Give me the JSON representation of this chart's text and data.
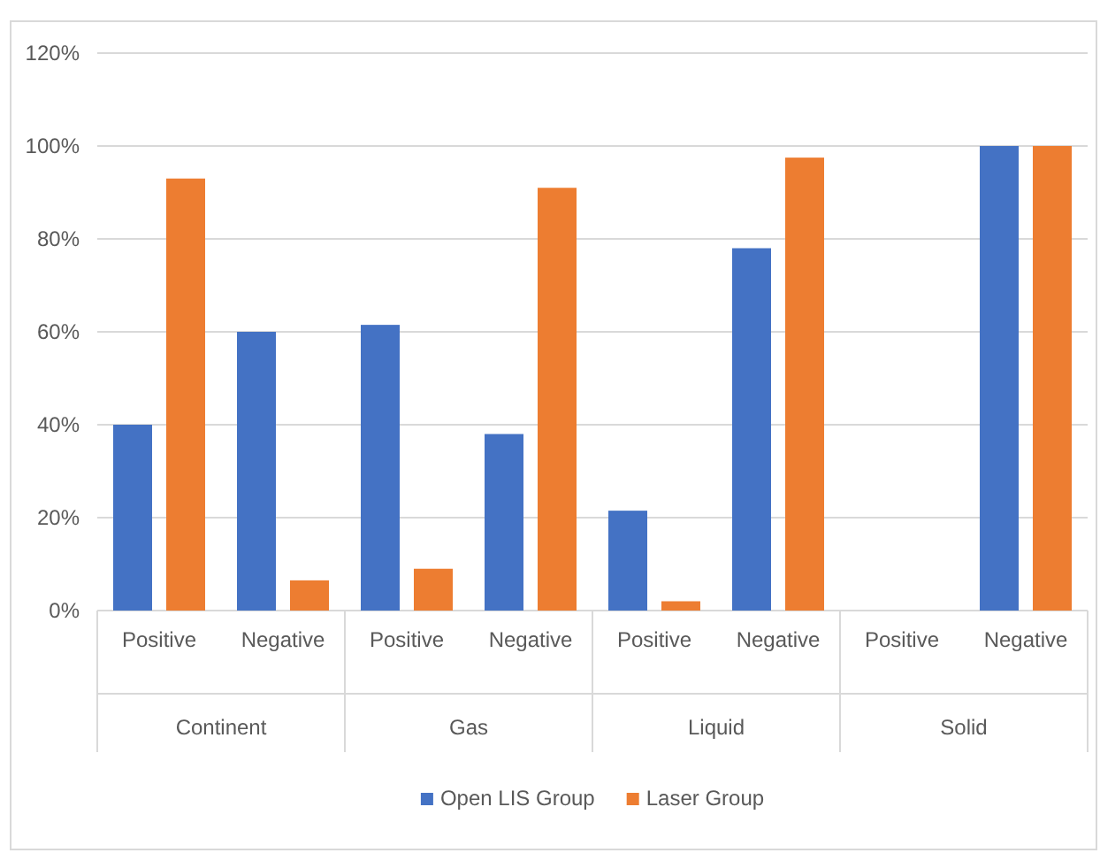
{
  "chart_data": {
    "type": "bar",
    "categories": [
      "Positive",
      "Negative",
      "Positive",
      "Negative",
      "Positive",
      "Negative",
      "Positive",
      "Negative"
    ],
    "annotations": [
      "Continent",
      "Gas",
      "Liquid",
      "Solid"
    ],
    "series": [
      {
        "name": "Open LIS Group",
        "color": "#4472c4",
        "values": [
          40,
          60,
          61.5,
          38,
          21.5,
          78,
          0,
          100
        ]
      },
      {
        "name": "Laser Group",
        "color": "#ed7d31",
        "values": [
          93,
          6.5,
          9,
          91,
          2,
          97.5,
          0,
          100
        ]
      }
    ],
    "ylim": [
      0,
      120
    ],
    "yticks": [
      {
        "value": 0,
        "label": "0%"
      },
      {
        "value": 20,
        "label": "20%"
      },
      {
        "value": 40,
        "label": "40%"
      },
      {
        "value": 60,
        "label": "60%"
      },
      {
        "value": 80,
        "label": "80%"
      },
      {
        "value": 100,
        "label": "100%"
      },
      {
        "value": 120,
        "label": "120%"
      }
    ],
    "grid": "y",
    "legend": "bottom"
  }
}
